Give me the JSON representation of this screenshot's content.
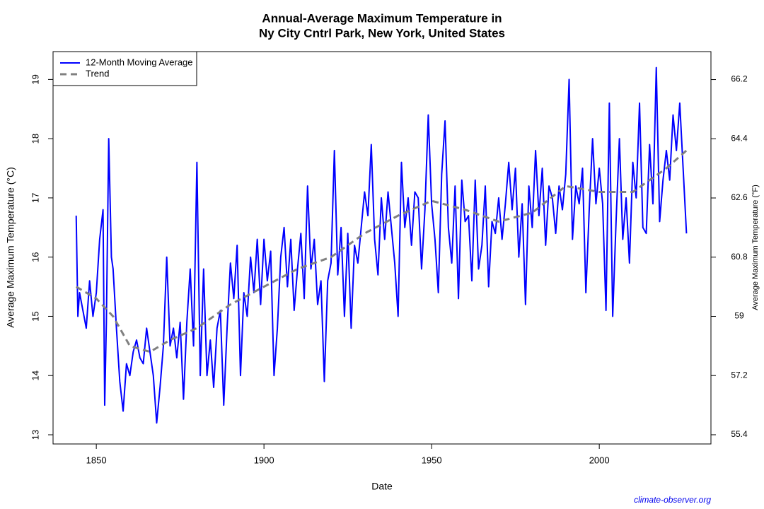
{
  "chart_data": {
    "type": "line",
    "title": "Annual-Average Maximum Temperature in",
    "subtitle": "Ny City Cntrl Park, New York, United States",
    "x_label": "Date",
    "y_label": "Average Maximum Temperature (°C)",
    "y2_label": "Average Maximum Temperature (°F)",
    "source": "climate-observer.org",
    "xlim": [
      1837.1,
      2033.3
    ],
    "xticks": [
      1850,
      1900,
      1950,
      2000
    ],
    "ylim": [
      12.845,
      19.47
    ],
    "yticks": [
      13,
      14,
      15,
      16,
      17,
      18,
      19
    ],
    "y2lim": [
      55.12,
      67.05
    ],
    "y2ticks": [
      55.4,
      57.2,
      59,
      60.8,
      62.6,
      64.4,
      66.2
    ],
    "legend": "top-left",
    "series": [
      {
        "name": "12-Month Moving Average",
        "color": "#0000ff",
        "style": "solid",
        "x": [
          1844,
          1844.5,
          1845,
          1846,
          1847,
          1848,
          1849,
          1850,
          1851,
          1852,
          1852.5,
          1853,
          1853.7,
          1854.5,
          1855,
          1856,
          1857,
          1858,
          1859,
          1860,
          1861,
          1862,
          1863,
          1864,
          1865,
          1866,
          1867,
          1868,
          1869,
          1870,
          1871,
          1872,
          1873,
          1874,
          1875,
          1876,
          1877,
          1878,
          1879,
          1880,
          1881,
          1882,
          1883,
          1884,
          1885,
          1886,
          1887,
          1888,
          1889,
          1890,
          1891,
          1892,
          1893,
          1894,
          1895,
          1896,
          1897,
          1898,
          1899,
          1900,
          1901,
          1902,
          1903,
          1904,
          1905,
          1906,
          1907,
          1908,
          1909,
          1910,
          1911,
          1912,
          1913,
          1914,
          1915,
          1916,
          1917,
          1918,
          1919,
          1920,
          1921,
          1922,
          1923,
          1924,
          1925,
          1926,
          1927,
          1928,
          1929,
          1930,
          1931,
          1932,
          1933,
          1934,
          1935,
          1936,
          1937,
          1938,
          1939,
          1940,
          1941,
          1942,
          1943,
          1944,
          1945,
          1946,
          1947,
          1948,
          1949,
          1950,
          1951,
          1952,
          1953,
          1954,
          1955,
          1956,
          1957,
          1958,
          1959,
          1960,
          1961,
          1962,
          1963,
          1964,
          1965,
          1966,
          1967,
          1968,
          1969,
          1970,
          1971,
          1972,
          1973,
          1974,
          1975,
          1976,
          1977,
          1978,
          1979,
          1980,
          1981,
          1982,
          1983,
          1984,
          1985,
          1986,
          1987,
          1988,
          1989,
          1990,
          1991,
          1992,
          1993,
          1994,
          1995,
          1996,
          1997,
          1998,
          1999,
          2000,
          2001,
          2002,
          2003,
          2004,
          2005,
          2006,
          2007,
          2008,
          2009,
          2010,
          2011,
          2012,
          2013,
          2014,
          2015,
          2016,
          2017,
          2018,
          2019,
          2020,
          2021,
          2022,
          2023,
          2024,
          2025,
          2026
        ],
        "values": [
          16.7,
          15.0,
          15.4,
          15.1,
          14.8,
          15.6,
          15.0,
          15.4,
          16.3,
          16.8,
          13.5,
          14.9,
          18.0,
          16.0,
          15.8,
          14.8,
          13.9,
          13.4,
          14.2,
          14.0,
          14.4,
          14.6,
          14.3,
          14.2,
          14.8,
          14.4,
          14.0,
          13.2,
          13.8,
          14.5,
          16.0,
          14.5,
          14.8,
          14.3,
          14.9,
          13.6,
          14.9,
          15.8,
          14.5,
          17.6,
          14.0,
          15.8,
          14.0,
          14.6,
          13.8,
          14.8,
          15.1,
          13.5,
          14.8,
          15.9,
          15.3,
          16.2,
          14.0,
          15.4,
          15.0,
          16.0,
          15.4,
          16.3,
          15.2,
          16.3,
          15.6,
          16.1,
          14.0,
          14.8,
          16.0,
          16.5,
          15.5,
          16.3,
          15.1,
          15.8,
          16.4,
          15.3,
          17.2,
          15.8,
          16.3,
          15.2,
          15.6,
          13.9,
          15.6,
          15.9,
          17.8,
          15.7,
          16.5,
          15.0,
          16.4,
          14.8,
          16.2,
          15.9,
          16.5,
          17.1,
          16.7,
          17.9,
          16.3,
          15.7,
          17.0,
          16.3,
          17.1,
          16.5,
          15.9,
          15.0,
          17.6,
          16.5,
          17.0,
          16.2,
          17.1,
          17.0,
          15.8,
          16.8,
          18.4,
          16.9,
          16.3,
          15.4,
          17.4,
          18.3,
          16.5,
          15.9,
          17.2,
          15.3,
          17.3,
          16.6,
          16.7,
          15.6,
          17.3,
          15.8,
          16.2,
          17.2,
          15.5,
          16.6,
          16.4,
          17.0,
          16.3,
          16.9,
          17.6,
          16.8,
          17.5,
          16.0,
          16.9,
          15.2,
          17.2,
          16.5,
          17.8,
          16.7,
          17.5,
          16.2,
          17.2,
          17.0,
          16.4,
          17.2,
          16.8,
          17.4,
          19.0,
          16.3,
          17.2,
          16.9,
          17.5,
          15.4,
          16.8,
          18.0,
          16.9,
          17.5,
          16.9,
          15.1,
          18.6,
          15.0,
          16.6,
          18.0,
          16.3,
          17.0,
          15.9,
          17.6,
          17.0,
          18.6,
          16.5,
          16.4,
          17.9,
          16.9,
          19.2,
          16.6,
          17.3,
          17.8,
          17.3,
          18.4,
          17.8,
          18.6,
          17.5,
          16.4
        ]
      },
      {
        "name": "Trend",
        "color": "#808080",
        "style": "dashed",
        "x": [
          1844,
          1850,
          1855,
          1860,
          1866,
          1872,
          1880,
          1890,
          1900,
          1910,
          1920,
          1930,
          1940,
          1950,
          1960,
          1970,
          1980,
          1990,
          2000,
          2010,
          2020,
          2026
        ],
        "values": [
          15.5,
          15.3,
          15.0,
          14.5,
          14.4,
          14.6,
          14.8,
          15.2,
          15.5,
          15.8,
          16.0,
          16.4,
          16.7,
          16.95,
          16.8,
          16.6,
          16.75,
          17.2,
          17.1,
          17.1,
          17.5,
          17.8
        ]
      }
    ]
  }
}
